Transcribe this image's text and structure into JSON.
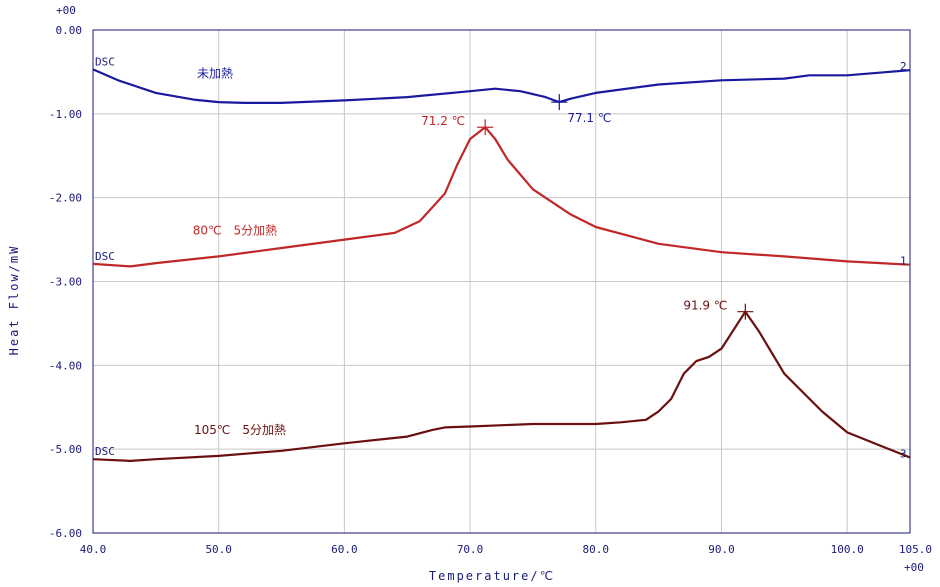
{
  "chart_data": {
    "type": "line",
    "xlabel": "Temperature/℃",
    "ylabel": "Heat Flow/mW",
    "xlim": [
      40,
      105
    ],
    "ylim": [
      -6,
      0
    ],
    "x_ticks": [
      "40.0",
      "50.0",
      "60.0",
      "70.0",
      "80.0",
      "90.0",
      "100.0",
      "105.0"
    ],
    "y_ticks": [
      "0.00",
      "-1.00",
      "-2.00",
      "-3.00",
      "-4.00",
      "-5.00",
      "-6.00"
    ],
    "y_scale_exponent": "+00",
    "x_scale_exponent": "+00",
    "grid": true,
    "series": [
      {
        "name": "未加熱",
        "tag": "DSC",
        "number": "2",
        "color": "#1a1aa0",
        "x": [
          40,
          42,
          45,
          48,
          50,
          52,
          55,
          60,
          65,
          70,
          72,
          74,
          76,
          77.1,
          78,
          80,
          85,
          90,
          95,
          97,
          100,
          105
        ],
        "y": [
          -0.47,
          -0.6,
          -0.75,
          -0.83,
          -0.86,
          -0.87,
          -0.87,
          -0.84,
          -0.8,
          -0.73,
          -0.7,
          -0.73,
          -0.8,
          -0.86,
          -0.82,
          -0.75,
          -0.65,
          -0.6,
          -0.58,
          -0.54,
          -0.54,
          -0.48
        ]
      },
      {
        "name": "80℃　5分加熱",
        "tag": "DSC",
        "number": "1",
        "color": "#c02828",
        "x": [
          40,
          43,
          45,
          50,
          55,
          60,
          64,
          66,
          68,
          69,
          70,
          71.2,
          72,
          73,
          75,
          78,
          80,
          85,
          90,
          95,
          100,
          105
        ],
        "y": [
          -2.79,
          -2.82,
          -2.78,
          -2.7,
          -2.6,
          -2.5,
          -2.42,
          -2.28,
          -1.95,
          -1.6,
          -1.3,
          -1.16,
          -1.3,
          -1.55,
          -1.9,
          -2.2,
          -2.35,
          -2.55,
          -2.65,
          -2.7,
          -2.76,
          -2.8
        ]
      },
      {
        "name": "105℃　5分加熱",
        "tag": "DSC",
        "number": "3",
        "color": "#6a1010",
        "x": [
          40,
          43,
          45,
          50,
          55,
          60,
          65,
          67,
          68,
          70,
          75,
          80,
          82,
          84,
          85,
          86,
          87,
          88,
          89,
          90,
          91.9,
          93,
          95,
          98,
          100,
          105
        ],
        "y": [
          -5.12,
          -5.14,
          -5.12,
          -5.08,
          -5.02,
          -4.93,
          -4.85,
          -4.77,
          -4.74,
          -4.73,
          -4.7,
          -4.7,
          -4.68,
          -4.65,
          -4.55,
          -4.4,
          -4.1,
          -3.95,
          -3.9,
          -3.8,
          -3.36,
          -3.6,
          -4.1,
          -4.55,
          -4.8,
          -5.1
        ]
      }
    ],
    "annotations": [
      {
        "text": "77.1 ℃",
        "x": 77.1,
        "y": -0.86,
        "color": "#1a1aa0"
      },
      {
        "text": "71.2 ℃",
        "x": 71.2,
        "y": -1.16,
        "color": "#c02828"
      },
      {
        "text": "91.9 ℃",
        "x": 91.9,
        "y": -3.36,
        "color": "#6a1010"
      }
    ]
  }
}
